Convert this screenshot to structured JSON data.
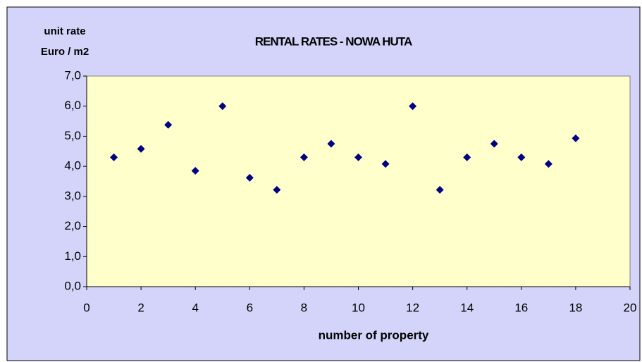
{
  "chart_data": {
    "type": "scatter",
    "title": "RENTAL RATES - NOWA HUTA",
    "y_label_lines": [
      "unit rate",
      "Euro / m2"
    ],
    "x_label": "number of property",
    "x": [
      1,
      2,
      3,
      4,
      5,
      6,
      7,
      8,
      9,
      10,
      11,
      12,
      13,
      14,
      15,
      16,
      17,
      18
    ],
    "values": [
      4.3,
      4.58,
      5.38,
      3.85,
      6.0,
      3.62,
      3.22,
      4.3,
      4.75,
      4.3,
      4.08,
      6.0,
      3.22,
      4.3,
      4.75,
      4.3,
      4.08,
      4.93
    ],
    "color": "#000080",
    "xlim": [
      0,
      20
    ],
    "xticks": [
      0,
      2,
      4,
      6,
      8,
      10,
      12,
      14,
      16,
      18,
      20
    ],
    "ylim": [
      0,
      7
    ],
    "yticks": [
      {
        "value": 0,
        "label": "0,0"
      },
      {
        "value": 1,
        "label": "1,0"
      },
      {
        "value": 2,
        "label": "2,0"
      },
      {
        "value": 3,
        "label": "3,0"
      },
      {
        "value": 4,
        "label": "4,0"
      },
      {
        "value": 5,
        "label": "5,0"
      },
      {
        "value": 6,
        "label": "6,0"
      },
      {
        "value": 7,
        "label": "7,0"
      }
    ],
    "grid": false
  }
}
